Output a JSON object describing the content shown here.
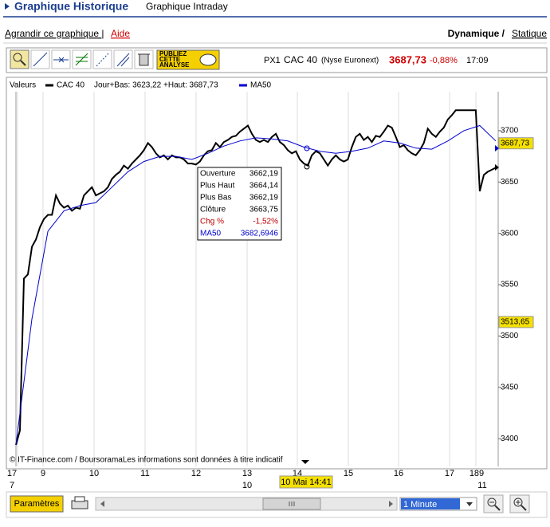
{
  "tabs": {
    "active": "Graphique Historique",
    "other": "Graphique Intraday"
  },
  "links": {
    "enlarge": "Agrandir ce graphique |",
    "help": "Aide",
    "mode_active": "Dynamique /",
    "mode_other": "Statique"
  },
  "toolbar": {
    "publish": [
      "PUBLIEZ",
      "CETTE",
      "ANALYSE"
    ],
    "symbol": "PX1",
    "name": "CAC 40",
    "market": "(Nyse Euronext)",
    "price": "3687,73",
    "change": "-0,88%",
    "time": "17:09"
  },
  "chart_data": {
    "type": "line",
    "legend_label": "Valeurs",
    "range_label": "Jour+Bas: 3623,22 +Haut: 3687,73",
    "series": [
      {
        "name": "CAC 40",
        "color": "#000000",
        "values": [
          3394,
          3408,
          3556,
          3560,
          3587,
          3594,
          3606,
          3614,
          3618,
          3618,
          3637,
          3629,
          3625,
          3627,
          3622,
          3625,
          3624,
          3637,
          3641,
          3645,
          3637,
          3639,
          3641,
          3645,
          3653,
          3657,
          3660,
          3666,
          3663,
          3668,
          3672,
          3676,
          3681,
          3688,
          3684,
          3678,
          3674,
          3676,
          3672,
          3676,
          3674,
          3674,
          3672,
          3668,
          3668,
          3667,
          3670,
          3676,
          3680,
          3681,
          3688,
          3684,
          3689,
          3691,
          3694,
          3695,
          3699,
          3702,
          3705,
          3697,
          3691,
          3689,
          3691,
          3689,
          3694,
          3697,
          3689,
          3686,
          3681,
          3678,
          3680,
          3672,
          3668,
          3666,
          3676,
          3680,
          3678,
          3672,
          3666,
          3672,
          3676,
          3672,
          3670,
          3672,
          3684,
          3694,
          3697,
          3691,
          3694,
          3689,
          3695,
          3694,
          3699,
          3705,
          3703,
          3694,
          3684,
          3686,
          3681,
          3678,
          3676,
          3681,
          3688,
          3702,
          3697,
          3694,
          3699,
          3703,
          3711,
          3715,
          3720,
          3720,
          3720,
          3720,
          3720,
          3720,
          3641,
          3657,
          3660,
          3662,
          3664
        ]
      },
      {
        "name": "MA50",
        "color": "#0000cc",
        "values": [
          3394,
          3517,
          3602,
          3622,
          3627,
          3630,
          3645,
          3660,
          3670,
          3675,
          3675,
          3672,
          3678,
          3685,
          3690,
          3693,
          3692,
          3690,
          3684,
          3680,
          3678,
          3680,
          3683,
          3690,
          3688,
          3683,
          3682,
          3690,
          3700,
          3705,
          3690
        ]
      }
    ],
    "ylim": [
      3373,
      3738
    ],
    "yticks": [
      3400,
      3450,
      3500,
      3550,
      3600,
      3650,
      3700
    ],
    "xtick_labels": [
      "17",
      "9",
      "10",
      "11",
      "12",
      "13",
      "14",
      "15",
      "16",
      "17",
      "189"
    ],
    "date_labels": [
      "7",
      "10",
      "11"
    ],
    "price_markers": [
      {
        "value": 3687.73,
        "label": "3687,73"
      },
      {
        "value": 3513.65,
        "label": "3513,65"
      }
    ],
    "tooltip": [
      [
        "Ouverture",
        "3662,19"
      ],
      [
        "Plus Haut",
        "3664,14"
      ],
      [
        "Plus Bas",
        "3662,19"
      ],
      [
        "Clôture",
        "3663,75"
      ],
      [
        "Chg %",
        "-1,52%"
      ],
      [
        "MA50",
        "3682,6946"
      ]
    ],
    "credit": "© IT-Finance.com / BoursoramaLes informations sont données à titre indicatif",
    "cursor_label": "10 Mai 14:41"
  },
  "footer": {
    "settings": "Paramètres",
    "interval": "1 Minute"
  }
}
